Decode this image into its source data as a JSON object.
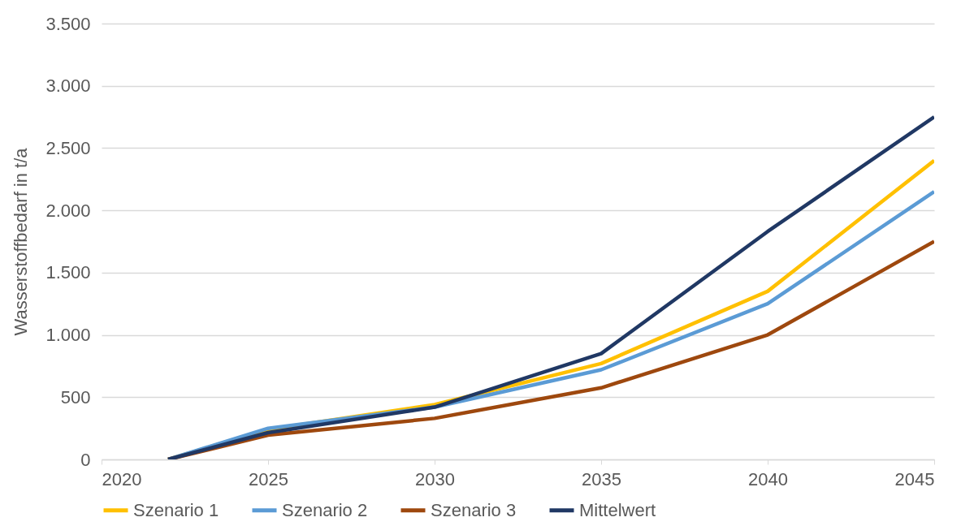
{
  "chart_data": {
    "type": "line",
    "ylabel": "Wasserstoffbedarf in t/a",
    "x": [
      2022,
      2025,
      2030,
      2035,
      2040,
      2045
    ],
    "series": [
      {
        "name": "Szenario 1",
        "color": "#ffc000",
        "values": [
          0,
          240,
          440,
          770,
          1350,
          2400
        ]
      },
      {
        "name": "Szenario 2",
        "color": "#5b9bd5",
        "values": [
          0,
          250,
          420,
          720,
          1250,
          2150
        ]
      },
      {
        "name": "Szenario 3",
        "color": "#9e480e",
        "values": [
          0,
          195,
          330,
          575,
          1000,
          1750
        ]
      },
      {
        "name": "Mittelwert",
        "color": "#203864",
        "values": [
          0,
          215,
          420,
          850,
          1830,
          2750
        ]
      }
    ],
    "xlim": [
      2020,
      2045
    ],
    "xticks": [
      2020,
      2025,
      2030,
      2035,
      2040,
      2045
    ],
    "ylim": [
      0,
      3500
    ],
    "yticks": [
      0,
      500,
      {
        "value": 1000,
        "label": "1.000"
      },
      {
        "value": 1500,
        "label": "1.500"
      },
      {
        "value": 2000,
        "label": "2.000"
      },
      {
        "value": 2500,
        "label": "2.500"
      },
      {
        "value": 3000,
        "label": "3.000"
      },
      {
        "value": 3500,
        "label": "3.500"
      }
    ],
    "grid": "y",
    "legend": "bottom",
    "marker": "none",
    "line_style": "solid"
  }
}
